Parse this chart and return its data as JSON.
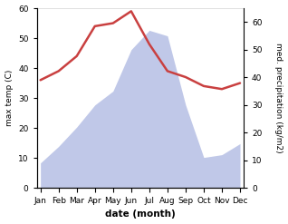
{
  "months": [
    "Jan",
    "Feb",
    "Mar",
    "Apr",
    "May",
    "Jun",
    "Jul",
    "Aug",
    "Sep",
    "Oct",
    "Nov",
    "Dec"
  ],
  "x": [
    0,
    1,
    2,
    3,
    4,
    5,
    6,
    7,
    8,
    9,
    10,
    11
  ],
  "temperature": [
    36,
    39,
    44,
    54,
    55,
    59,
    48,
    39,
    37,
    34,
    33,
    35
  ],
  "precipitation": [
    9,
    15,
    22,
    30,
    35,
    50,
    57,
    55,
    30,
    11,
    12,
    16
  ],
  "temp_color": "#c94040",
  "precip_fill_color": "#c0c8e8",
  "precip_edge_color": "#c0c8e8",
  "temp_ylim": [
    0,
    60
  ],
  "precip_ylim": [
    0,
    65
  ],
  "temp_yticks": [
    0,
    10,
    20,
    30,
    40,
    50,
    60
  ],
  "precip_yticks": [
    0,
    10,
    20,
    30,
    40,
    50,
    60
  ],
  "xlabel": "date (month)",
  "ylabel_left": "max temp (C)",
  "ylabel_right": "med. precipitation (kg/m2)",
  "line_width": 1.8,
  "figsize": [
    3.18,
    2.47
  ],
  "dpi": 100
}
